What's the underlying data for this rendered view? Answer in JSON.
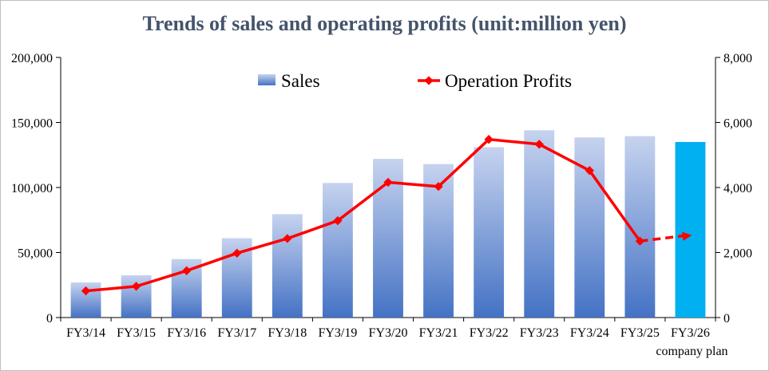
{
  "chart_data": {
    "type": "bar",
    "title": "Trends of sales and operating profits (unit:million yen)",
    "categories": [
      "FY3/14",
      "FY3/15",
      "FY3/16",
      "FY3/17",
      "FY3/18",
      "FY3/19",
      "FY3/20",
      "FY3/21",
      "FY3/22",
      "FY3/23",
      "FY3/24",
      "FY3/25",
      "FY3/26"
    ],
    "category_note": "company plan",
    "series": [
      {
        "name": "Sales",
        "type": "bar",
        "axis": "left",
        "values": [
          27000,
          32500,
          45000,
          61000,
          79500,
          103500,
          122000,
          118000,
          131000,
          144000,
          138500,
          139500,
          135000
        ],
        "forecast_index": 12
      },
      {
        "name": "Operation Profits",
        "type": "line",
        "axis": "right",
        "values": [
          820,
          960,
          1440,
          1980,
          2430,
          2980,
          4160,
          4030,
          5480,
          5330,
          4520,
          2350,
          2530
        ],
        "forecast_index": 12
      }
    ],
    "y_left": {
      "ylim": [
        0,
        200000
      ],
      "ticks": [
        "0",
        "50,000",
        "100,000",
        "150,000",
        "200,000"
      ]
    },
    "y_right": {
      "ylim": [
        0,
        8000
      ],
      "ticks": [
        "0",
        "2,000",
        "4,000",
        "6,000",
        "8,000"
      ]
    },
    "grid": false,
    "legend": "top-center",
    "colors": {
      "bar_top": "#c6d3ef",
      "bar_bottom": "#4472c4",
      "bar_forecast": "#00b0f0",
      "line": "#ff0000",
      "title": "#44546a"
    }
  }
}
